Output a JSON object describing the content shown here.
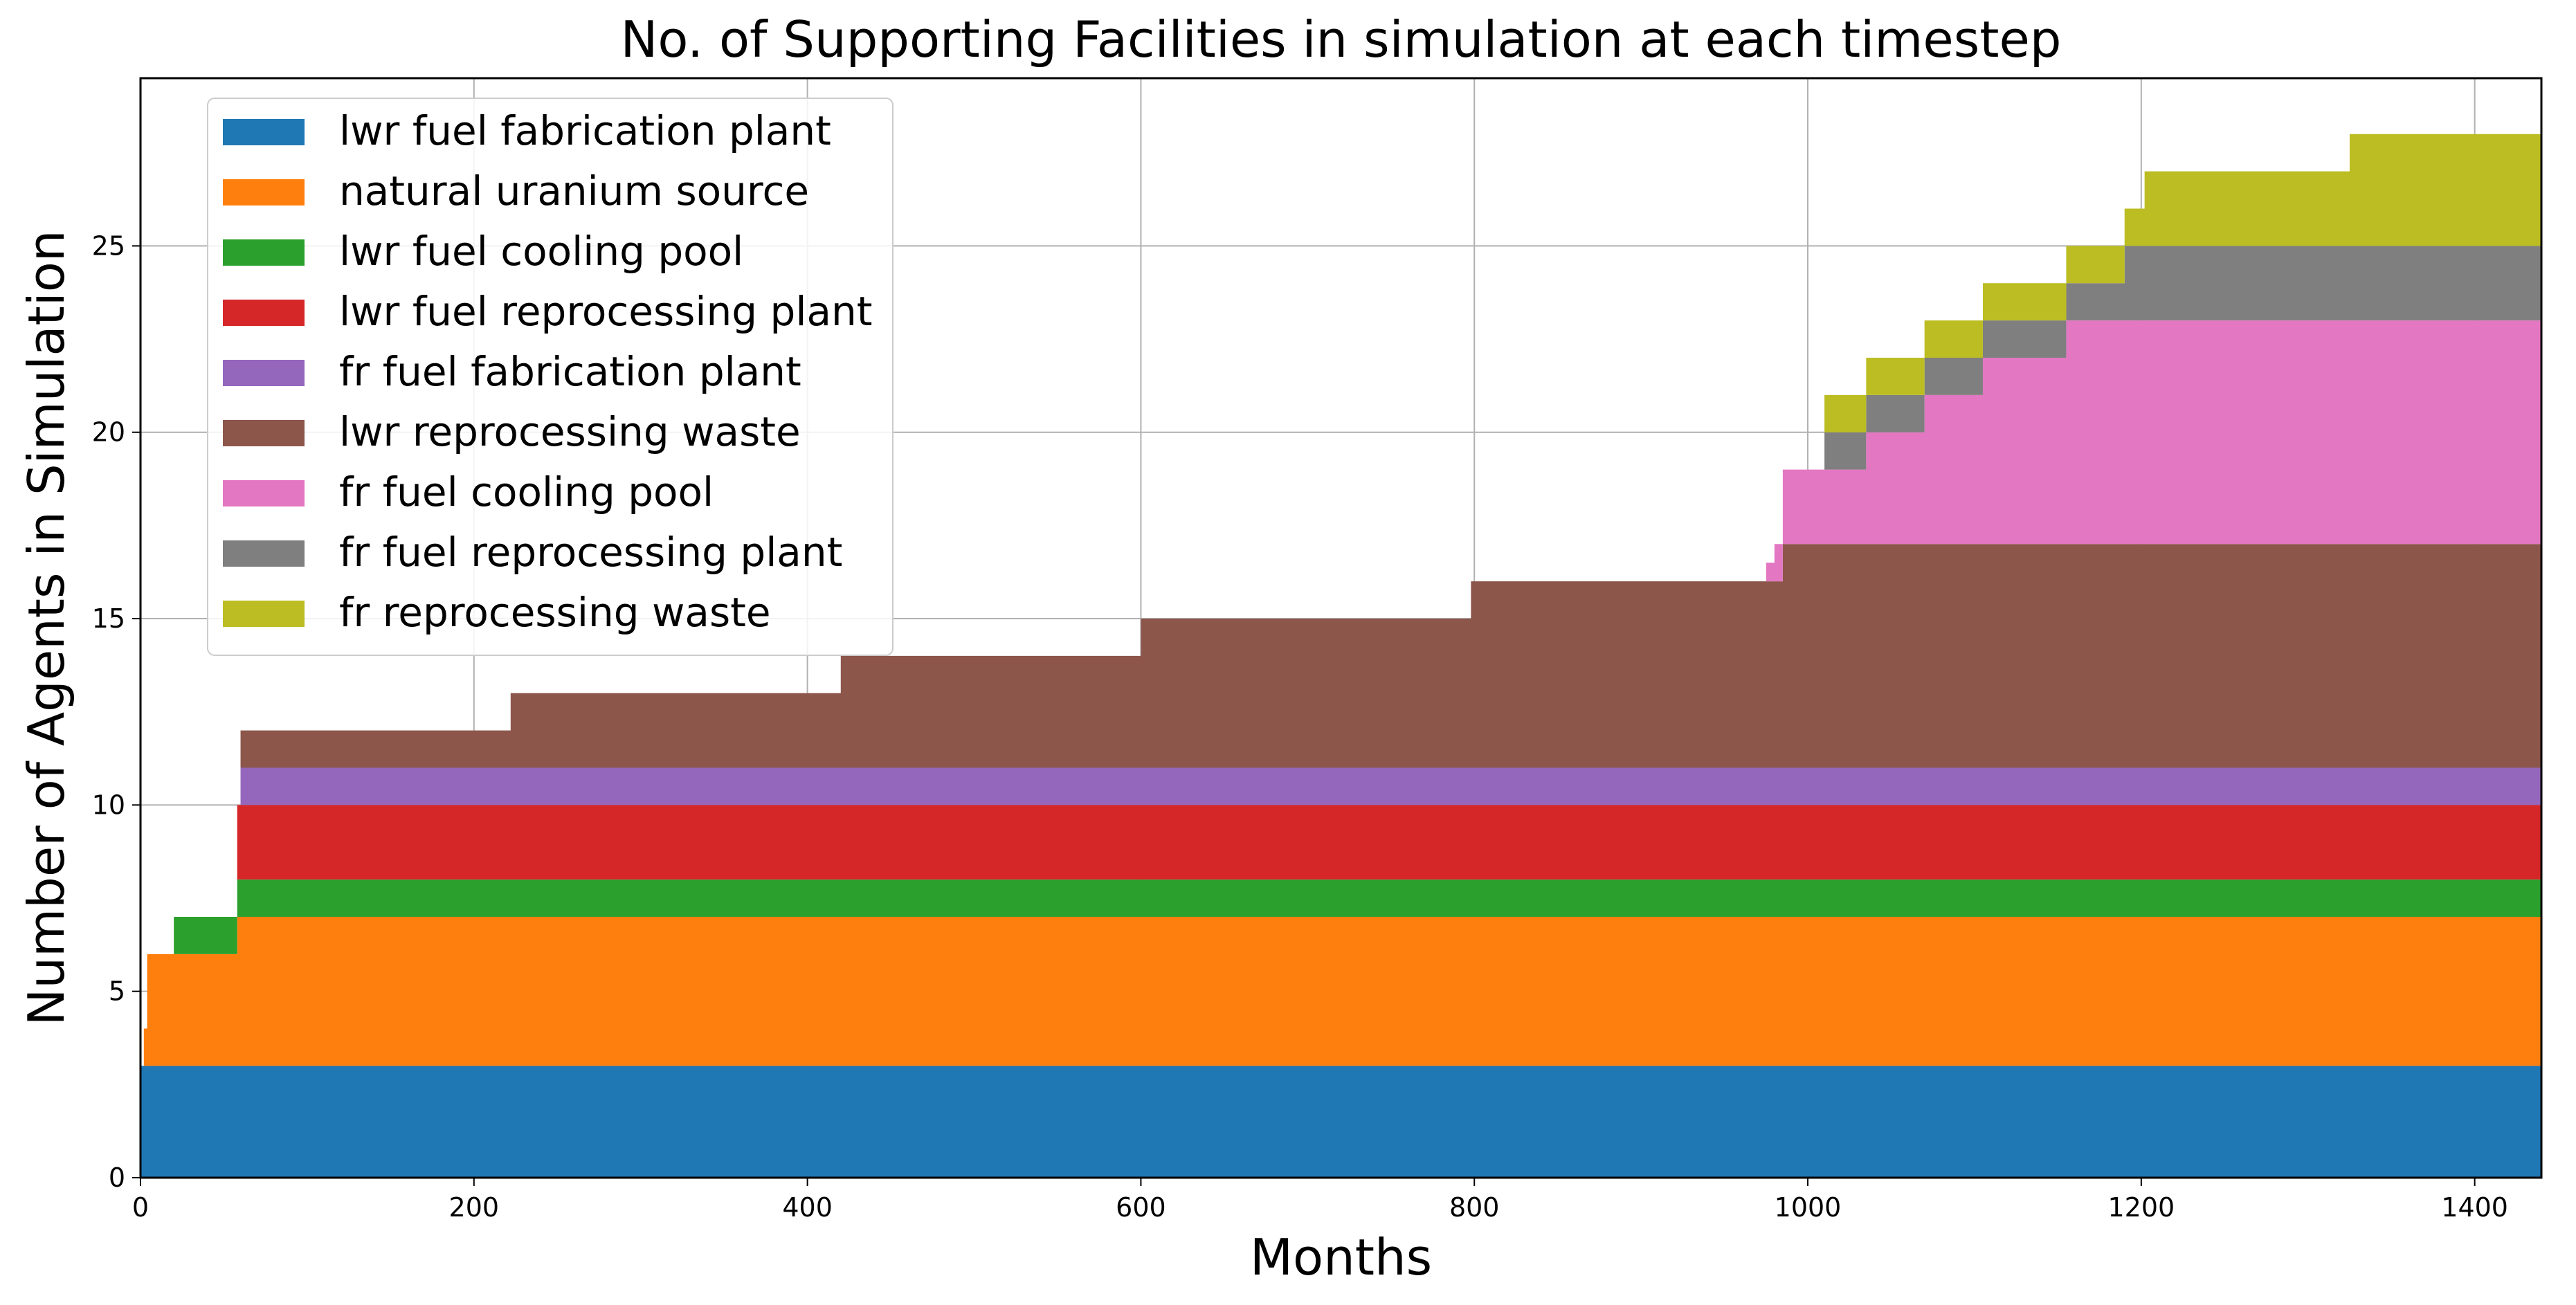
{
  "chart_data": {
    "type": "area",
    "title": "No. of Supporting Facilities in simulation at each timestep",
    "xlabel": "Months",
    "ylabel": "Number of Agents in Simulation",
    "xlim": [
      0,
      1440
    ],
    "ylim": [
      0,
      29.5
    ],
    "xticks": [
      0,
      200,
      400,
      600,
      800,
      1000,
      1200,
      1400
    ],
    "yticks": [
      0,
      5,
      10,
      15,
      20,
      25
    ],
    "grid": true,
    "legend_position": "upper-left",
    "step": true,
    "series": [
      {
        "name": "lwr fuel fabrication plant",
        "color": "#1f77b4",
        "points": [
          [
            0,
            3
          ]
        ]
      },
      {
        "name": "natural uranium source",
        "color": "#ff7f0e",
        "points": [
          [
            0,
            0
          ],
          [
            2,
            1
          ],
          [
            4,
            3
          ],
          [
            20,
            3
          ],
          [
            58,
            4
          ]
        ]
      },
      {
        "name": "lwr fuel cooling pool",
        "color": "#2ca02c",
        "points": [
          [
            0,
            0
          ],
          [
            20,
            1
          ],
          [
            58,
            1
          ]
        ]
      },
      {
        "name": "lwr fuel reprocessing plant",
        "color": "#d62728",
        "points": [
          [
            0,
            0
          ],
          [
            58,
            2
          ]
        ]
      },
      {
        "name": "fr fuel fabrication plant",
        "color": "#9467bd",
        "points": [
          [
            0,
            0
          ],
          [
            60,
            1
          ]
        ]
      },
      {
        "name": "lwr reprocessing waste",
        "color": "#8c564b",
        "points": [
          [
            0,
            0
          ],
          [
            60,
            1
          ],
          [
            75,
            1
          ],
          [
            222,
            2
          ],
          [
            420,
            3
          ],
          [
            600,
            4
          ],
          [
            798,
            5
          ],
          [
            985,
            6
          ]
        ]
      },
      {
        "name": "fr fuel cooling pool",
        "color": "#e377c2",
        "points": [
          [
            0,
            0
          ],
          [
            975,
            0.5
          ],
          [
            980,
            1
          ],
          [
            985,
            2
          ],
          [
            1035,
            3
          ],
          [
            1070,
            4
          ],
          [
            1105,
            5
          ],
          [
            1155,
            6
          ]
        ]
      },
      {
        "name": "fr fuel reprocessing plant",
        "color": "#7f7f7f",
        "points": [
          [
            0,
            0
          ],
          [
            1010,
            1
          ],
          [
            1035,
            1
          ],
          [
            1070,
            1
          ],
          [
            1105,
            1
          ],
          [
            1155,
            1
          ],
          [
            1190,
            2
          ]
        ]
      },
      {
        "name": "fr reprocessing waste",
        "color": "#bcbd22",
        "points": [
          [
            0,
            0
          ],
          [
            1010,
            1
          ],
          [
            1035,
            1
          ],
          [
            1070,
            1
          ],
          [
            1105,
            1
          ],
          [
            1155,
            1
          ],
          [
            1190,
            1
          ],
          [
            1202,
            2
          ],
          [
            1325,
            3
          ]
        ]
      }
    ]
  }
}
